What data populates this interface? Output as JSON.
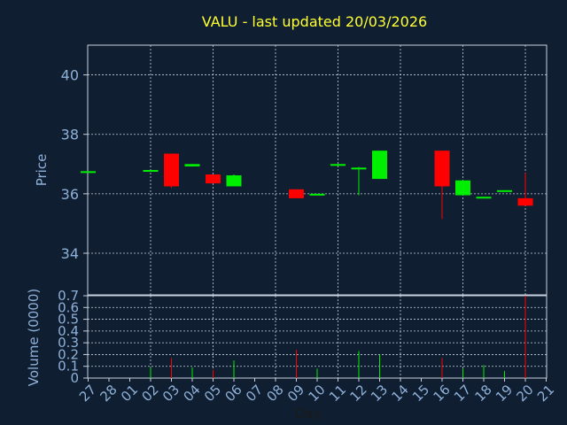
{
  "chart_data": {
    "type": "candlestick",
    "title": "VALU - last updated 20/03/2026",
    "xlabel": "Day",
    "x_tick_labels": [
      "27",
      "28",
      "01",
      "02",
      "03",
      "04",
      "05",
      "06",
      "07",
      "08",
      "09",
      "10",
      "11",
      "12",
      "13",
      "14",
      "15",
      "16",
      "17",
      "18",
      "19",
      "20",
      "21"
    ],
    "price_panel": {
      "ylabel": "Price",
      "ylim": [
        32.6,
        41.0
      ],
      "yticks": [
        34,
        36,
        38,
        40
      ],
      "candles": [
        {
          "day": "27",
          "open": 36.76,
          "high": 36.76,
          "low": 36.76,
          "close": 36.76,
          "color": "green"
        },
        {
          "day": "02",
          "open": 36.76,
          "high": 36.8,
          "low": 36.76,
          "close": 36.8,
          "color": "green"
        },
        {
          "day": "03",
          "open": 37.35,
          "high": 37.35,
          "low": 36.2,
          "close": 36.25,
          "color": "red"
        },
        {
          "day": "04",
          "open": 36.92,
          "high": 37.0,
          "low": 36.92,
          "close": 37.0,
          "color": "green"
        },
        {
          "day": "05",
          "open": 36.65,
          "high": 36.65,
          "low": 36.35,
          "close": 36.35,
          "color": "red"
        },
        {
          "day": "06",
          "open": 36.25,
          "high": 36.65,
          "low": 36.25,
          "close": 36.62,
          "color": "green"
        },
        {
          "day": "09",
          "open": 36.15,
          "high": 36.15,
          "low": 35.85,
          "close": 35.85,
          "color": "red"
        },
        {
          "day": "10",
          "open": 35.97,
          "high": 36.0,
          "low": 35.97,
          "close": 36.0,
          "color": "green"
        },
        {
          "day": "11",
          "open": 36.97,
          "high": 37.0,
          "low": 36.97,
          "close": 37.0,
          "color": "green"
        },
        {
          "day": "12",
          "open": 36.85,
          "high": 36.9,
          "low": 35.95,
          "close": 36.88,
          "color": "green"
        },
        {
          "day": "13",
          "open": 36.5,
          "high": 37.45,
          "low": 36.5,
          "close": 37.45,
          "color": "green"
        },
        {
          "day": "16",
          "open": 37.45,
          "high": 37.45,
          "low": 35.15,
          "close": 36.25,
          "color": "red"
        },
        {
          "day": "17",
          "open": 35.95,
          "high": 36.45,
          "low": 35.95,
          "close": 36.45,
          "color": "green"
        },
        {
          "day": "18",
          "open": 35.87,
          "high": 35.9,
          "low": 35.87,
          "close": 35.9,
          "color": "green"
        },
        {
          "day": "19",
          "open": 36.1,
          "high": 36.12,
          "low": 36.1,
          "close": 36.12,
          "color": "green"
        },
        {
          "day": "20",
          "open": 35.85,
          "high": 36.7,
          "low": 35.6,
          "close": 35.6,
          "color": "red"
        }
      ]
    },
    "volume_panel": {
      "ylabel": "Volume (0000)",
      "ylim": [
        0,
        0.7
      ],
      "yticks": [
        0,
        0.1,
        0.2,
        0.3,
        0.4,
        0.5,
        0.6,
        0.7
      ],
      "bars": [
        {
          "day": "02",
          "value": 0.09,
          "color": "green"
        },
        {
          "day": "03",
          "value": 0.17,
          "color": "red"
        },
        {
          "day": "04",
          "value": 0.09,
          "color": "green"
        },
        {
          "day": "05",
          "value": 0.07,
          "color": "red"
        },
        {
          "day": "06",
          "value": 0.15,
          "color": "green"
        },
        {
          "day": "09",
          "value": 0.24,
          "color": "red"
        },
        {
          "day": "10",
          "value": 0.08,
          "color": "green"
        },
        {
          "day": "12",
          "value": 0.23,
          "color": "green"
        },
        {
          "day": "13",
          "value": 0.2,
          "color": "green"
        },
        {
          "day": "16",
          "value": 0.17,
          "color": "red"
        },
        {
          "day": "17",
          "value": 0.08,
          "color": "green"
        },
        {
          "day": "18",
          "value": 0.11,
          "color": "green"
        },
        {
          "day": "19",
          "value": 0.06,
          "color": "green"
        },
        {
          "day": "20",
          "value": 0.7,
          "color": "red"
        }
      ]
    },
    "grid": true,
    "colors": {
      "background": "#0f1f31",
      "title": "#ffff33",
      "axis_text": "#8fb0d8",
      "grid": "#c8d2e0",
      "up": "#00ee00",
      "down": "#ff0000",
      "frame": "#c8d2e0"
    }
  }
}
